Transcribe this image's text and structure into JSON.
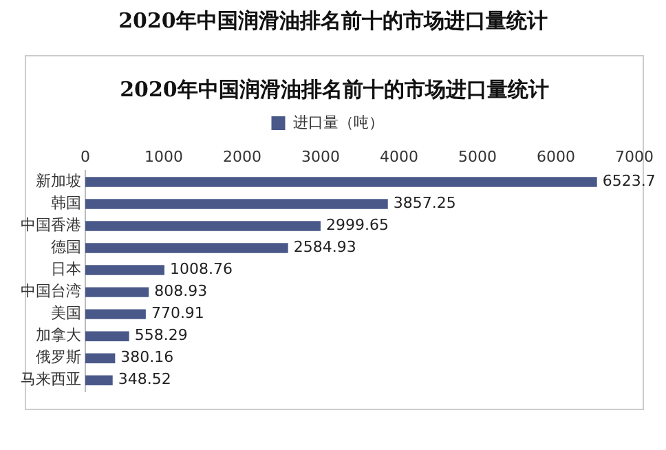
{
  "chart_data": {
    "type": "bar",
    "orientation": "horizontal",
    "title": "2020年中国润滑油排名前十的市场进口量统计",
    "subtitle": "2020年中国润滑油排名前十的市场进口量统计",
    "categories": [
      "新加坡",
      "韩国",
      "中国香港",
      "德国",
      "日本",
      "中国台湾",
      "美国",
      "加拿大",
      "俄罗斯",
      "马来西亚"
    ],
    "series": [
      {
        "name": "进口量（吨）",
        "color": "#4a5889",
        "values": [
          6523.7,
          3857.25,
          2999.65,
          2584.93,
          1008.76,
          808.93,
          770.91,
          558.29,
          380.16,
          348.52
        ]
      }
    ],
    "xlim": [
      0,
      7000
    ],
    "xticks": [
      0,
      1000,
      2000,
      3000,
      4000,
      5000,
      6000,
      7000
    ],
    "grid": false,
    "legend": "top",
    "data_labels": true
  }
}
